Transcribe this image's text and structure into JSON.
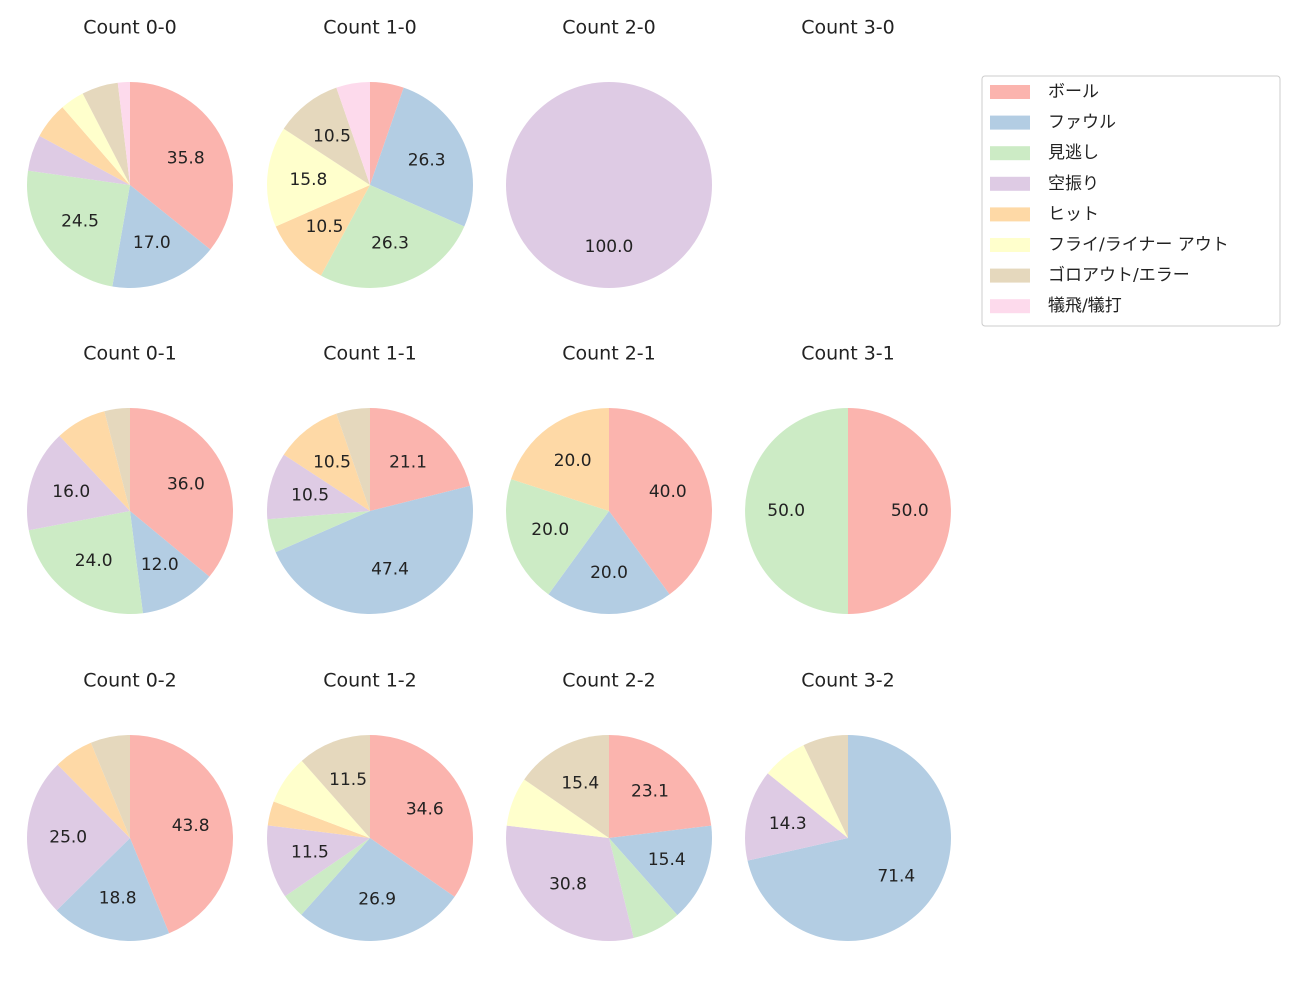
{
  "legend": {
    "labels": [
      "ボール",
      "ファウル",
      "見逃し",
      "空振り",
      "ヒット",
      "フライ/ライナー アウト",
      "ゴロアウト/エラー",
      "犠飛/犠打"
    ],
    "colors": [
      "#fbb4ae",
      "#b3cde3",
      "#ccebc5",
      "#decbe4",
      "#fed9a6",
      "#ffffcc",
      "#e5d8bd",
      "#fddaec"
    ],
    "position": "upper right"
  },
  "chart_data": [
    {
      "type": "pie",
      "title": "Count 0-0",
      "values": [
        35.8,
        17.0,
        24.5,
        5.7,
        5.7,
        3.8,
        5.7,
        1.9
      ],
      "value_labels": [
        "35.8",
        "17.0",
        "24.5",
        null,
        null,
        null,
        null,
        null
      ]
    },
    {
      "type": "pie",
      "title": "Count 1-0",
      "values": [
        5.3,
        26.3,
        26.3,
        0,
        10.5,
        15.8,
        10.5,
        5.3
      ],
      "value_labels": [
        null,
        "26.3",
        "26.3",
        null,
        "10.5",
        "15.8",
        "10.5",
        null
      ]
    },
    {
      "type": "pie",
      "title": "Count 2-0",
      "values": [
        0,
        0,
        0,
        100.0,
        0,
        0,
        0,
        0
      ],
      "value_labels": [
        null,
        null,
        null,
        "100.0",
        null,
        null,
        null,
        null
      ]
    },
    {
      "type": "pie",
      "title": "Count 3-0"
    },
    {
      "type": "pie",
      "title": "Count 0-1",
      "values": [
        36.0,
        12.0,
        24.0,
        16.0,
        8.0,
        0,
        4.0,
        0
      ],
      "value_labels": [
        "36.0",
        "12.0",
        "24.0",
        "16.0",
        null,
        null,
        null,
        null
      ]
    },
    {
      "type": "pie",
      "title": "Count 1-1",
      "values": [
        21.1,
        47.4,
        5.3,
        10.5,
        10.5,
        0,
        5.3,
        0
      ],
      "value_labels": [
        "21.1",
        "47.4",
        null,
        "10.5",
        "10.5",
        null,
        null,
        null
      ]
    },
    {
      "type": "pie",
      "title": "Count 2-1",
      "values": [
        40.0,
        20.0,
        20.0,
        0,
        20.0,
        0,
        0,
        0
      ],
      "value_labels": [
        "40.0",
        "20.0",
        "20.0",
        null,
        "20.0",
        null,
        null,
        null
      ]
    },
    {
      "type": "pie",
      "title": "Count 3-1",
      "values": [
        50.0,
        0,
        50.0,
        0,
        0,
        0,
        0,
        0
      ],
      "value_labels": [
        "50.0",
        null,
        "50.0",
        null,
        null,
        null,
        null,
        null
      ]
    },
    {
      "type": "pie",
      "title": "Count 0-2",
      "values": [
        43.8,
        18.8,
        0,
        25.0,
        6.2,
        0,
        6.2,
        0
      ],
      "value_labels": [
        "43.8",
        "18.8",
        null,
        "25.0",
        null,
        null,
        null,
        null
      ]
    },
    {
      "type": "pie",
      "title": "Count 1-2",
      "values": [
        34.6,
        26.9,
        3.8,
        11.5,
        3.8,
        7.7,
        11.5,
        0
      ],
      "value_labels": [
        "34.6",
        "26.9",
        null,
        "11.5",
        null,
        null,
        "11.5",
        null
      ]
    },
    {
      "type": "pie",
      "title": "Count 2-2",
      "values": [
        23.1,
        15.4,
        7.7,
        30.8,
        0,
        7.7,
        15.4,
        0
      ],
      "value_labels": [
        "23.1",
        "15.4",
        null,
        "30.8",
        null,
        null,
        "15.4",
        null
      ]
    },
    {
      "type": "pie",
      "title": "Count 3-2",
      "values": [
        0,
        71.4,
        0,
        14.3,
        0,
        7.1,
        7.1,
        0
      ],
      "value_labels": [
        null,
        "71.4",
        null,
        "14.3",
        null,
        null,
        null,
        null
      ]
    }
  ]
}
